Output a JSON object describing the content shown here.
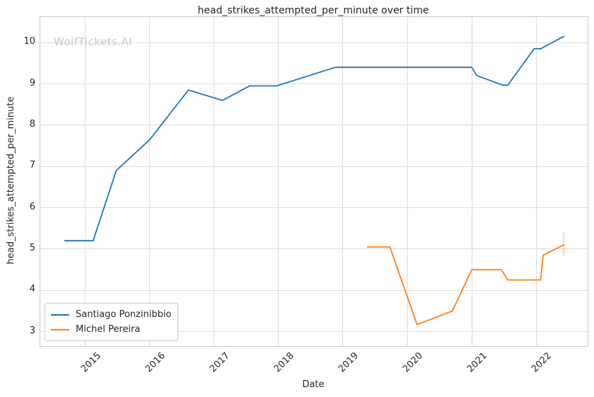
{
  "watermark": "WolfTickets.AI",
  "chart_data": {
    "type": "line",
    "title": "head_strikes_attempted_per_minute over time",
    "xlabel": "Date",
    "ylabel": "head_strikes_attempted_per_minute",
    "xlim": [
      2014.3,
      2022.8
    ],
    "ylim": [
      2.65,
      10.62
    ],
    "x_tick_labels": [
      "2015",
      "2016",
      "2017",
      "2018",
      "2019",
      "2020",
      "2021",
      "2022"
    ],
    "x_tick_values": [
      2015,
      2016,
      2017,
      2018,
      2019,
      2020,
      2021,
      2022
    ],
    "y_tick_labels": [
      "3",
      "4",
      "5",
      "6",
      "7",
      "8",
      "9",
      "10"
    ],
    "y_tick_values": [
      3,
      4,
      5,
      6,
      7,
      8,
      9,
      10
    ],
    "grid": true,
    "legend_position": "lower left",
    "series": [
      {
        "name": "Santiago Ponzinibbio",
        "color": "#1f77b4",
        "points": [
          [
            2014.68,
            5.2
          ],
          [
            2015.12,
            5.2
          ],
          [
            2015.48,
            6.9
          ],
          [
            2016.0,
            7.65
          ],
          [
            2016.6,
            8.85
          ],
          [
            2017.13,
            8.6
          ],
          [
            2017.55,
            8.95
          ],
          [
            2017.97,
            8.95
          ],
          [
            2018.88,
            9.4
          ],
          [
            2021.0,
            9.4
          ],
          [
            2021.08,
            9.2
          ],
          [
            2021.48,
            8.97
          ],
          [
            2021.56,
            8.97
          ],
          [
            2021.97,
            9.85
          ],
          [
            2022.07,
            9.85
          ],
          [
            2022.43,
            10.15
          ]
        ]
      },
      {
        "name": "Michel Pereira",
        "color": "#ff7f0e",
        "points": [
          [
            2019.38,
            5.05
          ],
          [
            2019.73,
            5.05
          ],
          [
            2020.15,
            3.17
          ],
          [
            2020.7,
            3.5
          ],
          [
            2021.0,
            4.5
          ],
          [
            2021.46,
            4.5
          ],
          [
            2021.56,
            4.25
          ],
          [
            2022.07,
            4.25
          ],
          [
            2022.11,
            4.85
          ],
          [
            2022.43,
            5.1
          ]
        ],
        "end_whisker": {
          "x": 2022.43,
          "y_low": 4.83,
          "y_high": 5.4
        }
      }
    ]
  }
}
